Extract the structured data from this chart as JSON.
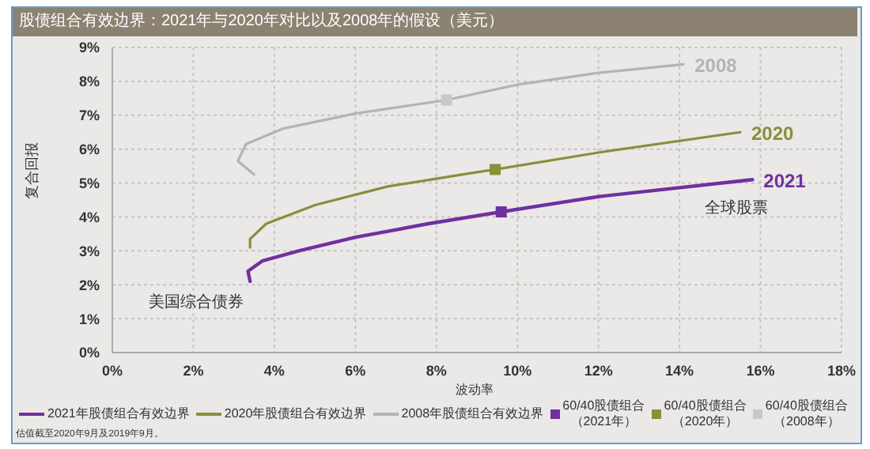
{
  "chart_data": {
    "type": "line",
    "title": "股债组合有效边界：2021年与2020年对比以及2008年的假设（美元）",
    "xlabel": "波动率",
    "ylabel": "复合回报",
    "xlim": [
      0,
      18
    ],
    "xticks": [
      {
        "value": 0,
        "label": "0%"
      },
      {
        "value": 2,
        "label": "2%"
      },
      {
        "value": 4,
        "label": "4%"
      },
      {
        "value": 6,
        "label": "6%"
      },
      {
        "value": 8,
        "label": "8%"
      },
      {
        "value": 10,
        "label": "10%"
      },
      {
        "value": 12,
        "label": "12%"
      },
      {
        "value": 14,
        "label": "14%"
      },
      {
        "value": 16,
        "label": "16%"
      },
      {
        "value": 18,
        "label": "18%"
      }
    ],
    "ylim": [
      0,
      9
    ],
    "yticks": [
      {
        "value": 0,
        "label": "0%"
      },
      {
        "value": 1,
        "label": "1%"
      },
      {
        "value": 2,
        "label": "2%"
      },
      {
        "value": 3,
        "label": "3%"
      },
      {
        "value": 4,
        "label": "4%"
      },
      {
        "value": 5,
        "label": "5%"
      },
      {
        "value": 6,
        "label": "6%"
      },
      {
        "value": 7,
        "label": "7%"
      },
      {
        "value": 8,
        "label": "8%"
      },
      {
        "value": 9,
        "label": "9%"
      }
    ],
    "grid": true,
    "legend": "bottom",
    "marker": "none",
    "series": [
      {
        "name": "2021年股债组合有效边界",
        "color": "#7030a0",
        "x": [
          3.4,
          3.35,
          3.7,
          4.6,
          6.0,
          7.8,
          9.6,
          12.0,
          15.8
        ],
        "values": [
          2.1,
          2.4,
          2.7,
          3.0,
          3.4,
          3.8,
          4.15,
          4.6,
          5.1
        ]
      },
      {
        "name": "2020年股债组合有效边界",
        "color": "#8a8f3a",
        "x": [
          3.4,
          3.4,
          3.8,
          5.0,
          6.8,
          8.9,
          9.45,
          12.0,
          15.5
        ],
        "values": [
          3.1,
          3.35,
          3.8,
          4.35,
          4.9,
          5.3,
          5.4,
          5.9,
          6.5
        ]
      },
      {
        "name": "2008年股债组合有效边界",
        "color": "#b4b4b4",
        "x": [
          3.5,
          3.1,
          3.3,
          4.2,
          6.0,
          8.25,
          10.0,
          12.0,
          14.1
        ],
        "values": [
          5.25,
          5.65,
          6.15,
          6.6,
          7.05,
          7.45,
          7.9,
          8.25,
          8.5
        ]
      },
      {
        "name": "60/40股债组合（2021年）",
        "type": "scatter",
        "marker": "square",
        "color": "#7030a0",
        "x": [
          9.6
        ],
        "values": [
          4.15
        ]
      },
      {
        "name": "60/40股债组合（2020年）",
        "type": "scatter",
        "marker": "square",
        "color": "#8a8f3a",
        "x": [
          9.45
        ],
        "values": [
          5.4
        ]
      },
      {
        "name": "60/40股债组合（2008年）",
        "type": "scatter",
        "marker": "square",
        "color": "#c8c8c8",
        "x": [
          8.25
        ],
        "values": [
          7.45
        ]
      }
    ],
    "annotations": [
      {
        "text": "2021",
        "x": 15.8,
        "y": 5.1
      },
      {
        "text": "全球股票",
        "x": 15.8,
        "y": 5.1
      },
      {
        "text": "2020",
        "x": 15.5,
        "y": 6.5
      },
      {
        "text": "2008",
        "x": 14.1,
        "y": 8.5
      },
      {
        "text": "美国综合债券",
        "x": 3.4,
        "y": 2.1
      },
      "估值截至2020年9月及2019年9月。"
    ]
  }
}
